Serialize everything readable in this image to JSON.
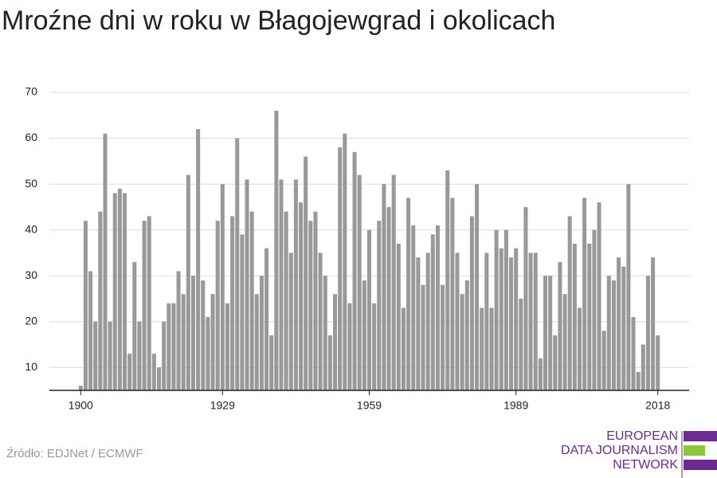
{
  "chart_data": {
    "type": "bar",
    "title": "Mroźne dni w roku w Błagojewgrad i okolicach",
    "x": [
      1900,
      1901,
      1902,
      1903,
      1904,
      1905,
      1906,
      1907,
      1908,
      1909,
      1910,
      1911,
      1912,
      1913,
      1914,
      1915,
      1916,
      1917,
      1918,
      1919,
      1920,
      1921,
      1922,
      1923,
      1924,
      1925,
      1926,
      1927,
      1928,
      1929,
      1930,
      1931,
      1932,
      1933,
      1934,
      1935,
      1936,
      1937,
      1938,
      1939,
      1940,
      1941,
      1942,
      1943,
      1944,
      1945,
      1946,
      1947,
      1948,
      1949,
      1950,
      1951,
      1952,
      1953,
      1954,
      1955,
      1956,
      1957,
      1958,
      1959,
      1960,
      1961,
      1962,
      1963,
      1964,
      1965,
      1966,
      1967,
      1968,
      1969,
      1970,
      1971,
      1972,
      1973,
      1974,
      1975,
      1976,
      1977,
      1978,
      1979,
      1980,
      1981,
      1982,
      1983,
      1984,
      1985,
      1986,
      1987,
      1988,
      1989,
      1990,
      1991,
      1992,
      1993,
      1994,
      1995,
      1996,
      1997,
      1998,
      1999,
      2000,
      2001,
      2002,
      2003,
      2004,
      2005,
      2006,
      2007,
      2008,
      2009,
      2010,
      2011,
      2012,
      2013,
      2014,
      2015,
      2016,
      2017,
      2018
    ],
    "values": [
      6,
      42,
      31,
      20,
      44,
      61,
      20,
      48,
      49,
      48,
      13,
      33,
      20,
      42,
      43,
      13,
      10,
      20,
      24,
      24,
      31,
      26,
      52,
      30,
      62,
      29,
      21,
      26,
      42,
      50,
      24,
      43,
      60,
      39,
      51,
      44,
      26,
      30,
      36,
      17,
      66,
      51,
      44,
      35,
      51,
      46,
      56,
      42,
      44,
      35,
      30,
      17,
      26,
      58,
      61,
      24,
      57,
      52,
      29,
      40,
      24,
      42,
      50,
      45,
      52,
      37,
      23,
      47,
      41,
      34,
      28,
      35,
      39,
      41,
      28,
      53,
      47,
      35,
      26,
      29,
      43,
      50,
      23,
      35,
      23,
      40,
      36,
      40,
      34,
      36,
      25,
      45,
      35,
      35,
      12,
      30,
      30,
      17,
      33,
      26,
      43,
      37,
      23,
      47,
      37,
      40,
      46,
      18,
      30,
      29,
      34,
      32,
      50,
      21,
      9,
      15,
      30,
      34,
      17
    ],
    "color": "#999999",
    "xlim": [
      1893.6,
      2024.4
    ],
    "xticks": [
      1900,
      1929,
      1959,
      1989,
      2018
    ],
    "ylim": [
      5,
      70
    ],
    "yticks": [
      10,
      20,
      30,
      40,
      50,
      60,
      70
    ],
    "grid": true
  },
  "footer": {
    "source": "Źródło: EDJNet / ECMWF"
  },
  "logo": {
    "lines": [
      "EUROPEAN",
      "DATA JOURNALISM",
      "NETWORK"
    ]
  }
}
